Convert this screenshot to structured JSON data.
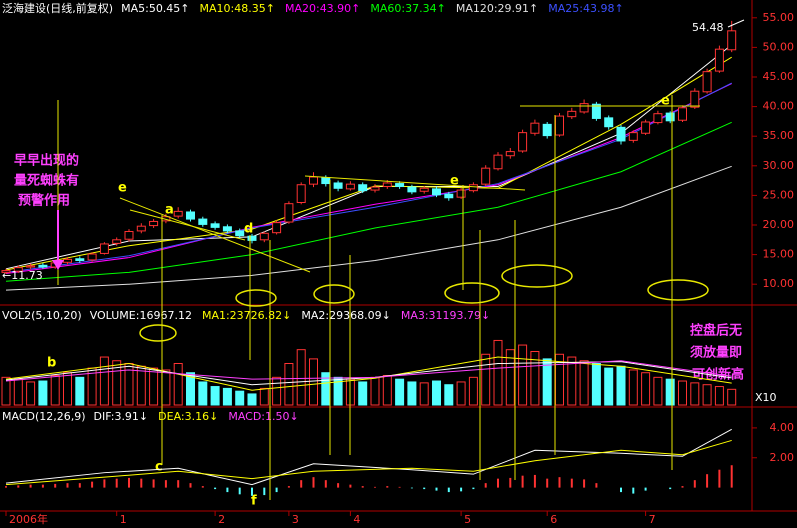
{
  "chart_data": [
    {
      "type": "candlestick",
      "title": "泛海建设(日线,前复权)",
      "up_color": "#ff3232",
      "down_color": "#54ffff",
      "open": [
        12.0,
        12.2,
        12.9,
        13.2,
        12.9,
        13.7,
        14.3,
        14.1,
        15.2,
        16.9,
        17.6,
        19.0,
        19.9,
        20.7,
        21.5,
        22.2,
        21.0,
        20.2,
        19.7,
        19.0,
        18.1,
        17.5,
        18.7,
        20.5,
        23.8,
        26.9,
        28.0,
        27.1,
        26.1,
        26.8,
        25.9,
        26.5,
        27.0,
        26.4,
        25.7,
        26.1,
        25.2,
        24.7,
        25.8,
        26.9,
        29.5,
        31.7,
        32.5,
        35.5,
        37.0,
        35.2,
        38.3,
        39.1,
        40.4,
        38.1,
        36.5,
        34.3,
        35.5,
        37.3,
        38.9,
        37.7,
        39.9,
        42.5,
        46.0,
        49.6
      ],
      "close": [
        12.3,
        12.8,
        13.1,
        12.9,
        13.6,
        14.2,
        14.0,
        15.1,
        16.8,
        17.5,
        18.9,
        19.8,
        20.6,
        21.4,
        22.3,
        21.0,
        20.1,
        19.6,
        19.0,
        18.2,
        17.4,
        18.6,
        20.4,
        23.6,
        26.8,
        28.1,
        27.0,
        26.2,
        26.9,
        25.8,
        26.4,
        27.1,
        26.5,
        25.6,
        26.2,
        25.1,
        24.6,
        25.9,
        26.8,
        29.6,
        31.8,
        32.4,
        35.6,
        37.2,
        35.1,
        38.4,
        39.2,
        40.5,
        38.0,
        36.6,
        34.2,
        35.6,
        37.4,
        38.8,
        37.6,
        39.8,
        42.6,
        45.9,
        49.7,
        52.8
      ],
      "low": [
        11.73,
        11.9,
        12.5,
        12.6,
        12.6,
        13.3,
        13.6,
        13.8,
        15.0,
        16.5,
        17.2,
        18.6,
        19.5,
        20.3,
        21.1,
        20.6,
        19.7,
        19.2,
        18.6,
        17.8,
        16.9,
        17.1,
        18.4,
        20.2,
        23.5,
        26.4,
        26.5,
        25.7,
        25.8,
        25.4,
        25.5,
        26.1,
        26.1,
        25.2,
        25.3,
        24.7,
        24.1,
        24.4,
        25.5,
        26.6,
        29.2,
        31.2,
        32.2,
        35.1,
        34.6,
        34.9,
        37.9,
        38.8,
        37.6,
        36.1,
        33.6,
        33.9,
        35.2,
        37.0,
        37.2,
        37.4,
        39.6,
        42.2,
        45.7,
        49.2
      ],
      "high": [
        12.6,
        13.2,
        13.5,
        13.6,
        14.0,
        14.6,
        14.7,
        15.4,
        17.1,
        17.9,
        19.3,
        20.3,
        21.0,
        21.9,
        23.0,
        22.6,
        21.4,
        20.6,
        20.1,
        19.4,
        18.5,
        18.9,
        20.8,
        24.0,
        27.2,
        28.9,
        28.4,
        27.5,
        27.4,
        27.2,
        26.9,
        27.6,
        27.4,
        26.8,
        26.6,
        26.5,
        25.6,
        26.3,
        27.2,
        30.1,
        32.3,
        33.0,
        36.1,
        37.8,
        37.4,
        38.9,
        39.8,
        41.2,
        40.8,
        38.5,
        36.9,
        36.0,
        37.8,
        39.3,
        39.2,
        40.2,
        43.1,
        46.4,
        50.3,
        54.48
      ],
      "series": [
        {
          "name": "MA5:50.45↑",
          "color": "#ffffff",
          "x": [
            0,
            10,
            20,
            30,
            40,
            50,
            59
          ],
          "values": [
            12.6,
            17.3,
            18.0,
            26.5,
            26.5,
            35.5,
            50.45
          ]
        },
        {
          "name": "MA10:48.35↑",
          "color": "#ffff00",
          "x": [
            0,
            10,
            20,
            30,
            40,
            50,
            59
          ],
          "values": [
            12.4,
            16.5,
            19.3,
            26.6,
            26.2,
            37.0,
            48.35
          ]
        },
        {
          "name": "MA20:43.90↑",
          "color": "#ff00ff",
          "x": [
            0,
            10,
            20,
            30,
            40,
            50,
            59
          ],
          "values": [
            11.8,
            14.5,
            19.6,
            23.5,
            26.8,
            34.8,
            43.9
          ]
        },
        {
          "name": "MA60:37.34↑",
          "color": "#00ff00",
          "x": [
            0,
            10,
            20,
            30,
            40,
            50,
            59
          ],
          "values": [
            10.5,
            12.0,
            15.0,
            19.5,
            23.0,
            29.0,
            37.34
          ]
        },
        {
          "name": "MA120:29.91↑",
          "color": "#e0e0e0",
          "x": [
            0,
            10,
            20,
            30,
            40,
            50,
            59
          ],
          "values": [
            9.0,
            10.0,
            11.5,
            14.0,
            17.5,
            23.0,
            29.91
          ]
        },
        {
          "name": "MA25:43.98↑",
          "color": "#3c50ff",
          "x": [
            0,
            10,
            20,
            30,
            40,
            50,
            59
          ],
          "values": [
            12.0,
            14.8,
            19.5,
            23.0,
            27.0,
            34.5,
            43.98
          ]
        }
      ],
      "ylim": [
        7.5,
        57.5
      ],
      "yticks": [
        {
          "value": 10,
          "label": "10.00"
        },
        {
          "value": 15,
          "label": "15.00"
        },
        {
          "value": 20,
          "label": "20.00"
        },
        {
          "value": 25,
          "label": "25.00"
        },
        {
          "value": 30,
          "label": "30.00"
        },
        {
          "value": 35,
          "label": "35.00"
        },
        {
          "value": 40,
          "label": "40.00"
        },
        {
          "value": 45,
          "label": "45.00"
        },
        {
          "value": 50,
          "label": "50.00"
        },
        {
          "value": 55,
          "label": "55.00"
        }
      ],
      "xticks": [
        {
          "value": 0,
          "label": "2006年"
        },
        {
          "value": 9,
          "label": "1"
        },
        {
          "value": 17,
          "label": "2"
        },
        {
          "value": 23,
          "label": "3"
        },
        {
          "value": 28,
          "label": "4"
        },
        {
          "value": 37,
          "label": "5"
        },
        {
          "value": 44,
          "label": "6"
        },
        {
          "value": 52,
          "label": "7"
        }
      ],
      "annotations": [
        "早早出现的",
        "量死蜘蛛有",
        "预警作用",
        "控盘后无",
        "须放量即",
        "可创新高",
        "a",
        "b",
        "c",
        "d",
        "e",
        "e",
        "e",
        "f",
        "54.48",
        "←11.73"
      ]
    },
    {
      "type": "bar",
      "title": "VOL2(5,10,20)",
      "unit_label": "X10",
      "series": [
        {
          "name": "VOLUME:16967.12",
          "color": "#ffffff",
          "values": [
            30000,
            28000,
            25000,
            26000,
            32000,
            35000,
            30000,
            40000,
            52000,
            48000,
            45000,
            42000,
            40000,
            38000,
            45000,
            35000,
            25000,
            20000,
            18000,
            15000,
            12000,
            18000,
            30000,
            45000,
            60000,
            50000,
            35000,
            30000,
            28000,
            25000,
            30000,
            32000,
            28000,
            25000,
            24000,
            26000,
            22000,
            25000,
            30000,
            55000,
            70000,
            60000,
            65000,
            58000,
            50000,
            55000,
            52000,
            48000,
            45000,
            40000,
            42000,
            38000,
            35000,
            30000,
            28000,
            26000,
            24000,
            22000,
            20000,
            17000
          ]
        },
        {
          "name": "MA1:23726.82↓",
          "color": "#ffff00",
          "x": [
            0,
            10,
            20,
            30,
            40,
            50,
            59
          ],
          "values": [
            28000,
            45000,
            16000,
            29000,
            52000,
            42000,
            23726.82
          ]
        },
        {
          "name": "MA2:29368.09↓",
          "color": "#ffffff",
          "x": [
            0,
            10,
            20,
            30,
            40,
            50,
            59
          ],
          "values": [
            27000,
            42000,
            22000,
            30000,
            45000,
            47000,
            29368.09
          ]
        },
        {
          "name": "MA3:31193.79↓",
          "color": "#ff40ff",
          "x": [
            0,
            10,
            20,
            30,
            40,
            50,
            59
          ],
          "values": [
            26000,
            38000,
            28000,
            30000,
            40000,
            48000,
            31193.79
          ]
        }
      ],
      "ylim": [
        0,
        90000
      ]
    },
    {
      "type": "macd",
      "title": "MACD(12,26,9)",
      "series": [
        {
          "name": "DIF:3.91↓",
          "color": "#ffffff",
          "x": [
            0,
            8,
            14,
            20,
            25,
            33,
            38,
            43,
            50,
            55,
            59
          ],
          "values": [
            0.3,
            1.0,
            1.3,
            0.2,
            1.6,
            1.2,
            0.9,
            2.5,
            2.3,
            2.1,
            3.91
          ]
        },
        {
          "name": "DEA:3.16↓",
          "color": "#ffff00",
          "x": [
            0,
            8,
            14,
            20,
            25,
            33,
            38,
            43,
            50,
            55,
            59
          ],
          "values": [
            0.2,
            0.7,
            1.1,
            0.6,
            1.1,
            1.3,
            1.1,
            1.8,
            2.5,
            2.2,
            3.16
          ]
        },
        {
          "name": "MACD:1.50↓",
          "color": "#ff40ff",
          "values": [
            0.1,
            0.15,
            0.2,
            0.2,
            0.25,
            0.3,
            0.3,
            0.4,
            0.55,
            0.6,
            0.65,
            0.6,
            0.55,
            0.5,
            0.5,
            0.3,
            0.1,
            -0.1,
            -0.3,
            -0.45,
            -0.55,
            -0.5,
            -0.3,
            0.1,
            0.5,
            0.7,
            0.5,
            0.3,
            0.2,
            0.1,
            0.05,
            0.1,
            0.05,
            -0.05,
            -0.1,
            -0.2,
            -0.3,
            -0.25,
            -0.1,
            0.3,
            0.6,
            0.65,
            0.8,
            0.85,
            0.6,
            0.7,
            0.6,
            0.55,
            0.3,
            0.0,
            -0.3,
            -0.4,
            -0.2,
            0.0,
            -0.1,
            0.1,
            0.5,
            0.9,
            1.2,
            1.5
          ]
        }
      ],
      "ylim": [
        -1.5,
        5.2
      ],
      "yticks": [
        {
          "value": 2,
          "label": "2.00"
        },
        {
          "value": 4,
          "label": "4.00"
        }
      ]
    }
  ]
}
